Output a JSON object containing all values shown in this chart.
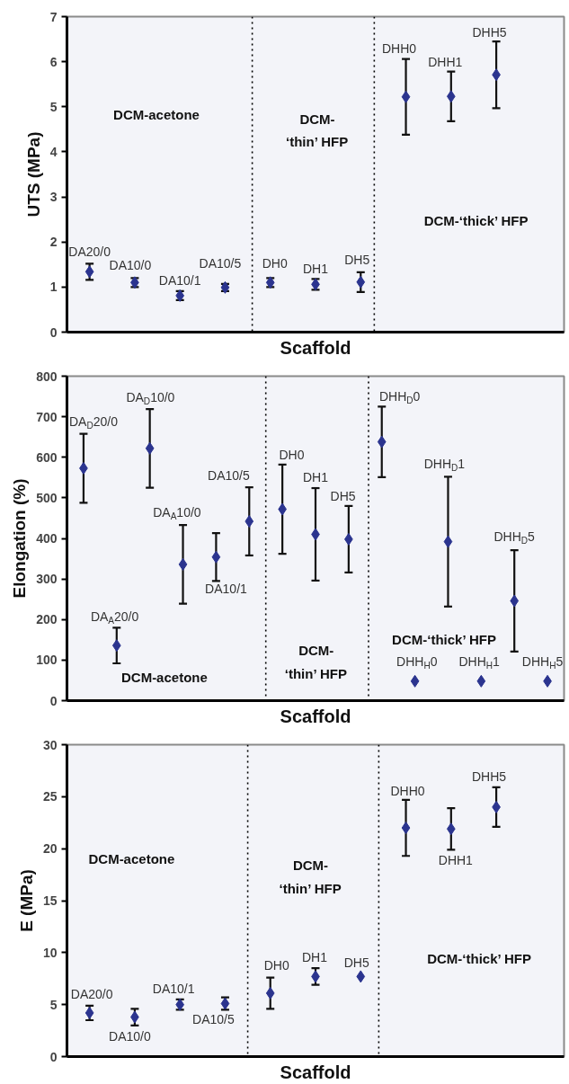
{
  "chart_data": [
    {
      "type": "scatter",
      "xlabel": "Scaffold",
      "ylabel": "UTS (MPa)",
      "categories": [
        null,
        null,
        null,
        null,
        null,
        null,
        null,
        null,
        null,
        null,
        null
      ],
      "ylim": [
        0,
        7
      ],
      "yticks": [
        0,
        1,
        2,
        3,
        4,
        5,
        6,
        7
      ],
      "tick_labels": "y",
      "grid": false,
      "marker": "diamond",
      "series": [
        {
          "color": "#2b348f",
          "values": [
            1.34,
            1.1,
            0.81,
            0.99,
            1.1,
            1.06,
            1.11,
            5.22,
            5.23,
            5.71,
            null
          ],
          "errors": [
            0.18,
            0.1,
            0.1,
            0.08,
            0.1,
            0.12,
            0.22,
            0.84,
            0.55,
            0.74,
            null
          ]
        }
      ],
      "annotations": [
        "DCM-acetone",
        "DCM-\n‘thin’ HFP",
        "DCM-‘thick’ HFP",
        "DA20/0",
        "DA10/0",
        "DA10/1",
        "DA10/5",
        "DH0",
        "DH1",
        "DH5",
        "DHH0",
        "DHH1",
        "DHH5"
      ]
    },
    {
      "type": "scatter",
      "xlabel": "Scaffold",
      "ylabel": "Elongation (%)",
      "categories": [
        null,
        null,
        null,
        null,
        null,
        null,
        null,
        null,
        null,
        null,
        null,
        null,
        null,
        null,
        null
      ],
      "ylim": [
        0,
        800
      ],
      "yticks": [
        0,
        100,
        200,
        300,
        400,
        500,
        600,
        700,
        800
      ],
      "tick_labels": "y",
      "grid": false,
      "marker": "diamond",
      "series": [
        {
          "color": "#2b348f",
          "values": [
            573,
            136,
            622,
            336,
            354,
            442,
            472,
            410,
            398,
            638,
            48,
            392,
            48,
            246,
            48
          ],
          "errors": [
            85,
            44,
            97,
            97,
            59,
            84,
            110,
            114,
            82,
            87,
            null,
            160,
            null,
            125,
            null
          ]
        }
      ],
      "annotations": [
        "DCM-acetone",
        "DCM-\n‘thin’ HFP",
        "DCM-‘thick’ HFP",
        "DA$_{D}$20/0",
        "DA$_{A}$20/0",
        "DA$_{D}$10/0",
        "DA$_{A}$10/0",
        "DA10/1",
        "DA10/5",
        "DH0",
        "DH1",
        "DH5",
        "DHH$_{D}$0",
        "DHH$_{H}$0",
        "DHH$_{D}$1",
        "DHH$_{H}$1",
        "DHH$_{D}$5",
        "DHH$_{H}$5"
      ]
    },
    {
      "type": "scatter",
      "xlabel": "Scaffold",
      "ylabel": "E (MPa)",
      "categories": [
        null,
        null,
        null,
        null,
        null,
        null,
        null,
        null,
        null,
        null,
        null
      ],
      "ylim": [
        0,
        30
      ],
      "yticks": [
        0,
        5,
        10,
        15,
        20,
        25,
        30
      ],
      "tick_labels": "y",
      "grid": false,
      "marker": "diamond",
      "series": [
        {
          "color": "#2b348f",
          "values": [
            4.2,
            3.8,
            5.0,
            5.1,
            6.1,
            7.7,
            7.7,
            22.0,
            21.9,
            24.0,
            null
          ],
          "errors": [
            0.7,
            0.8,
            0.5,
            0.6,
            1.5,
            0.8,
            null,
            2.7,
            2.0,
            1.9,
            null
          ]
        }
      ],
      "annotations": [
        "DCM-acetone",
        "DCM-\n‘thin’ HFP",
        "DCM-‘thick’ HFP",
        "DA20/0",
        "DA10/0",
        "DA10/1",
        "DA10/5",
        "DH0",
        "DH1",
        "DH5",
        "DHH0",
        "DHH1",
        "DHH5"
      ]
    }
  ]
}
